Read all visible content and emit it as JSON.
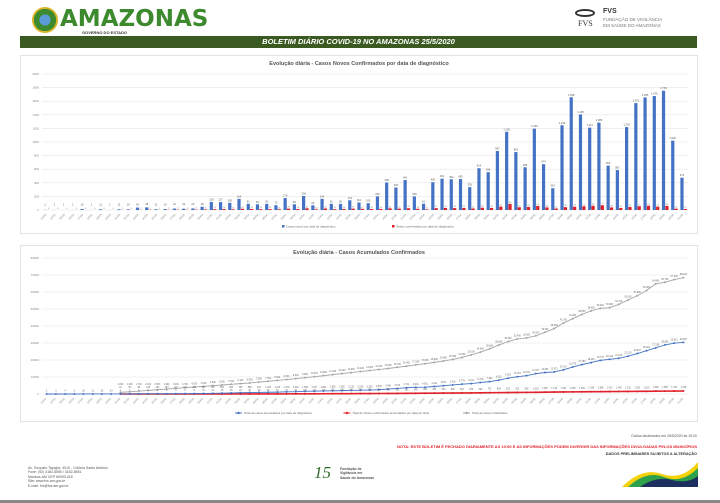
{
  "header": {
    "logo": "AMAZONAS",
    "logo_sub": "GOVERNO DO ESTADO",
    "fvs_name": "FVS",
    "fvs_line1": "FUNDAÇÃO DE VIGILÂNCIA",
    "fvs_line2": "EM SAÚDE DO AMAZONAS",
    "fvs_mark": "FVS",
    "banner": "BOLETIM DIÁRIO COVID-19 NO AMAZONAS 25/5/2020"
  },
  "colors": {
    "banner": "#3b5a22",
    "blue": "#4472c4",
    "red": "#e0202a",
    "gray": "#a5a5a5",
    "note": "#e0202a"
  },
  "chart_data": [
    {
      "type": "bar",
      "title": "Evolução diária - Casos Novos Confirmados por data de diagnóstico",
      "ylim": [
        0,
        2000
      ],
      "yticks": [
        0,
        200,
        400,
        600,
        800,
        1000,
        1200,
        1400,
        1600,
        1800,
        2000
      ],
      "grid": true,
      "legend": "bottom",
      "categories": [
        "13/03",
        "14/03",
        "15/03",
        "16/03",
        "17/03",
        "18/03",
        "19/03",
        "20/03",
        "21/03",
        "22/03",
        "23/03",
        "24/03",
        "25/03",
        "26/03",
        "27/03",
        "28/03",
        "29/03",
        "30/03",
        "31/03",
        "01/04",
        "02/04",
        "03/04",
        "04/04",
        "05/04",
        "06/04",
        "07/04",
        "08/04",
        "09/04",
        "10/04",
        "11/04",
        "12/04",
        "13/04",
        "14/04",
        "15/04",
        "16/04",
        "17/04",
        "18/04",
        "19/04",
        "20/04",
        "21/04",
        "22/04",
        "23/04",
        "24/04",
        "25/04",
        "26/04",
        "27/04",
        "28/04",
        "29/04",
        "30/04",
        "01/05",
        "02/05",
        "03/05",
        "04/05",
        "05/05",
        "06/05",
        "07/05",
        "08/05",
        "09/05",
        "10/05",
        "11/05",
        "12/05",
        "13/05",
        "14/05",
        "15/05",
        "16/05",
        "17/05",
        "18/05",
        "19/05",
        "20/05",
        "21/05"
      ],
      "series": [
        {
          "name": "Casos novos por data de diagnóstico",
          "color": "#4472c4",
          "values": [
            2,
            1,
            1,
            1,
            15,
            1,
            11,
            1,
            11,
            10,
            36,
            38,
            11,
            14,
            21,
            19,
            23,
            48,
            119,
            117,
            105,
            163,
            91,
            84,
            90,
            70,
            176,
            83,
            206,
            69,
            164,
            91,
            90,
            143,
            110,
            100,
            200,
            405,
            330,
            441,
            199,
            91,
            409,
            461,
            452,
            455,
            336,
            614,
            556,
            867,
            1150,
            852,
            628,
            1196,
            674,
            320,
            1246,
            1658,
            1405,
            1211,
            1285,
            653,
            587,
            1219,
            1572,
            1655,
            1676,
            1754,
            1020,
            475
          ]
        },
        {
          "name": "Óbitos confirmados por data de diagnóstico",
          "color": "#e0202a",
          "values": [
            0,
            0,
            0,
            0,
            0,
            0,
            0,
            0,
            1,
            0,
            2,
            3,
            1,
            2,
            4,
            3,
            5,
            8,
            12,
            14,
            10,
            18,
            15,
            12,
            13,
            11,
            20,
            14,
            25,
            10,
            22,
            12,
            15,
            20,
            17,
            14,
            16,
            24,
            20,
            26,
            18,
            9,
            27,
            30,
            28,
            30,
            22,
            34,
            30,
            50,
            90,
            40,
            45,
            60,
            38,
            22,
            42,
            48,
            55,
            62,
            70,
            38,
            30,
            45,
            55,
            62,
            50,
            60,
            20,
            15
          ]
        }
      ]
    },
    {
      "type": "line",
      "title": "Evolução diária - Casos Acumulados Confirmados",
      "ylim": [
        0,
        80000
      ],
      "yticks": [
        0,
        10000,
        20000,
        30000,
        40000,
        50000,
        60000,
        70000,
        80000
      ],
      "grid": true,
      "legend": "bottom",
      "series": [
        {
          "name": "Total de casos acumulados por data de diagnóstico",
          "color": "#4472c4",
          "values": [
            2,
            3,
            4,
            5,
            20,
            21,
            32,
            33,
            44,
            54,
            90,
            128,
            139,
            153,
            174,
            193,
            216,
            264,
            383,
            500,
            605,
            768,
            859,
            943,
            1033,
            1103,
            1279,
            1362,
            1568,
            1637,
            1801,
            1892,
            1982,
            2125,
            2235,
            2335,
            2535,
            2940,
            3270,
            3711,
            3910,
            4001,
            4410,
            4871,
            5323,
            5778,
            6114,
            6728,
            7284,
            8151,
            9301,
            10153,
            10781,
            11977,
            12651,
            12971,
            14217,
            15875,
            17280,
            18491,
            19776,
            20429,
            21016,
            22235,
            23807,
            25462,
            27138,
            28892,
            29912,
            30387
          ]
        },
        {
          "name": "Total de óbitos confirmados acumulados por data do óbito",
          "color": "#e0202a",
          "values": [
            null,
            null,
            null,
            null,
            null,
            null,
            null,
            null,
            1,
            1,
            1,
            1,
            2,
            3,
            4,
            6,
            8,
            10,
            12,
            15,
            18,
            23,
            30,
            40,
            53,
            62,
            76,
            90,
            106,
            124,
            145,
            167,
            185,
            207,
            234,
            255,
            288,
            320,
            351,
            380,
            425,
            458,
            498,
            530,
            565,
            604,
            649,
            693,
            751,
            806,
            872,
            925,
            962,
            1018,
            1087,
            1145,
            1204,
            1256,
            1309,
            1348,
            1388,
            1413,
            1465,
            1510,
            1553,
            1610,
            1666,
            1696,
            1730,
            1758
          ]
        },
        {
          "name": "Total de Casos Notificados",
          "color": "#a5a5a5",
          "values": [
            null,
            null,
            null,
            null,
            null,
            null,
            null,
            null,
            1000,
            1300,
            1700,
            2100,
            2500,
            2900,
            3300,
            3700,
            4100,
            4500,
            4900,
            5300,
            5700,
            6100,
            6500,
            7000,
            7500,
            8000,
            8500,
            9000,
            9600,
            10200,
            10800,
            11400,
            12000,
            12600,
            13200,
            13800,
            14400,
            15000,
            15700,
            16400,
            17100,
            17800,
            18600,
            19400,
            20300,
            21500,
            23000,
            24600,
            26600,
            28800,
            30800,
            32400,
            33000,
            34200,
            36300,
            38500,
            41700,
            44300,
            46800,
            48900,
            50400,
            50800,
            52700,
            55300,
            57800,
            60900,
            64800,
            65700,
            67300,
            68424
          ]
        }
      ]
    }
  ],
  "footer": {
    "updated": "Dados atualizados em 25/5/2020 às 15:00",
    "note": "NOTA: ESTE BOLETIM É FECHADO DIARIAMENTE AS 10:00 E AS INFORMAÇÕES PODEM DIVERGIR DAS INFORMAÇÕES DIVULGADAS PELOS MUNICÍPIOS",
    "prelim": "DADOS PRELIMINARES SUJEITOS A ALTERAÇÃO",
    "address": [
      "Av. Torquato Tapajós, 4010 - Colônia Santo Antônio",
      "Fone: (92) 3182-8550 / 3182-8551",
      "Manaus-AM CEP 69093-018",
      "Site: www.fvs.am.gov.br",
      "E-mail: fvs@fvs.am.gov.br"
    ],
    "fvs_footer": [
      "Fundação de",
      "Vigilância em",
      "Saúde do Amazonas"
    ]
  }
}
